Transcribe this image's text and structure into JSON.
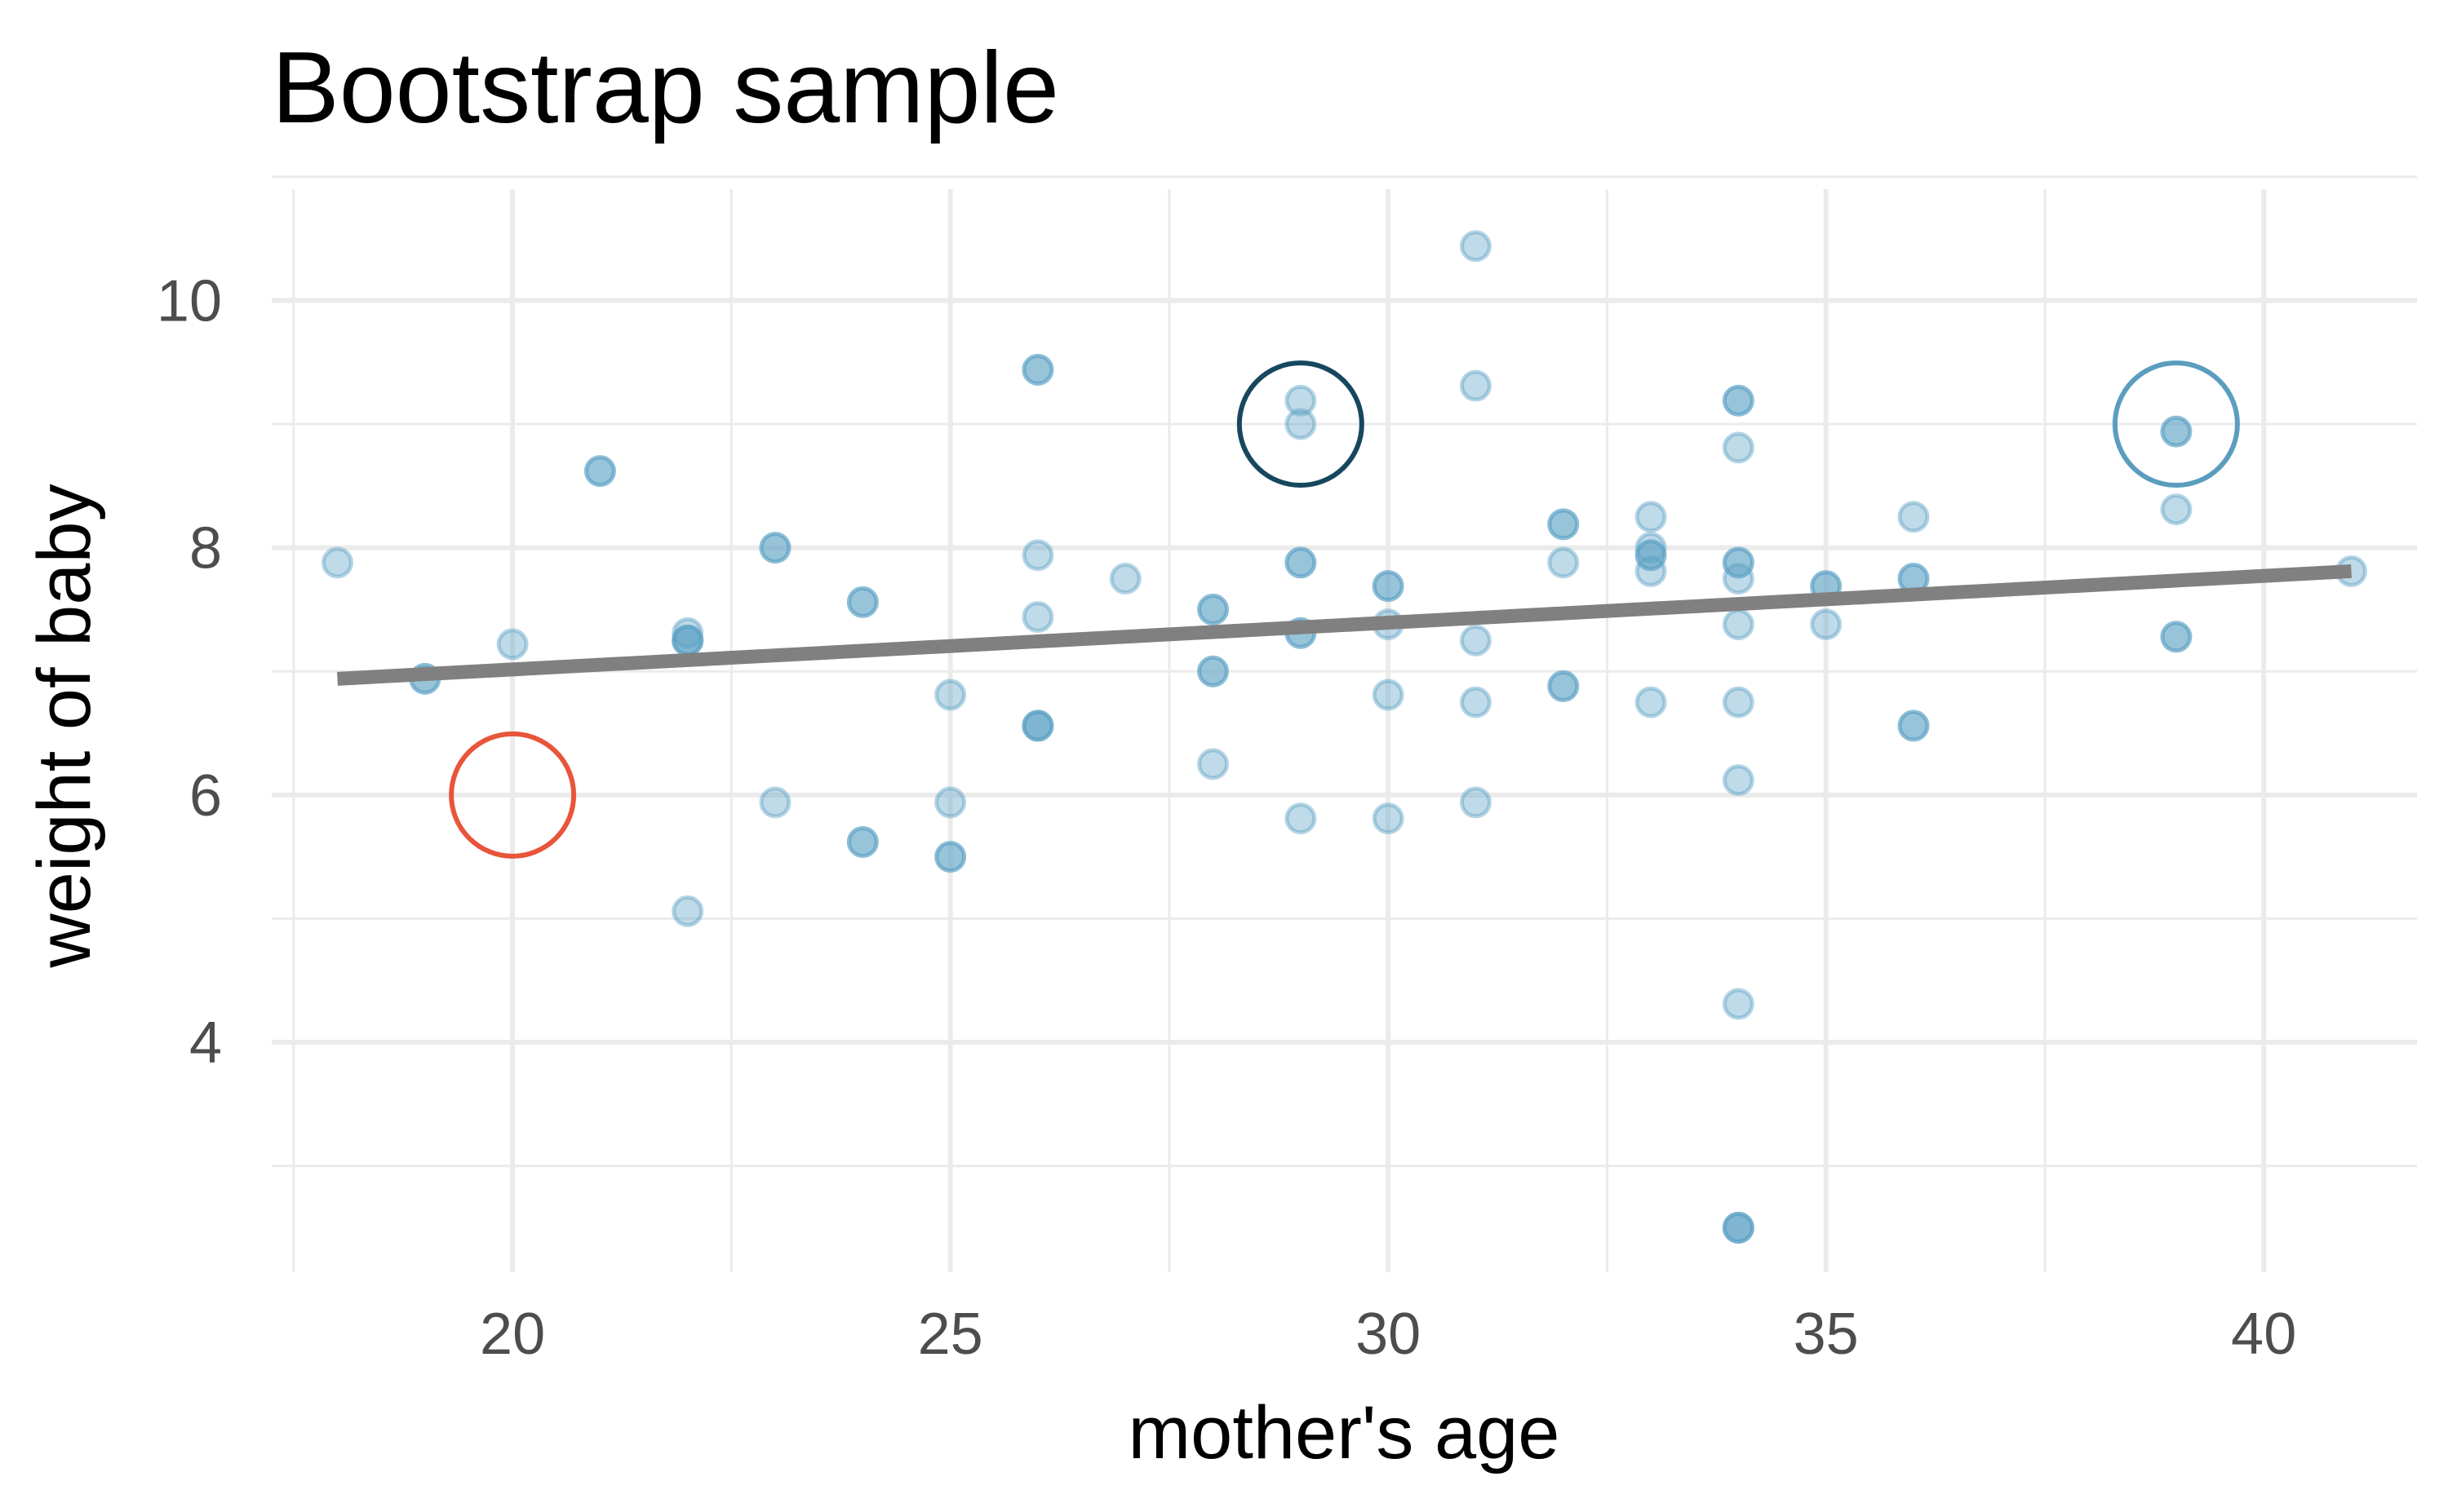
{
  "chart_data": {
    "type": "scatter",
    "title": "Bootstrap sample",
    "xlabel": "mother's age",
    "ylabel": "weight of baby",
    "xlim": [
      17.25,
      41.75
    ],
    "ylim": [
      2.14,
      10.9
    ],
    "x_ticks": [
      20,
      25,
      30,
      35,
      40
    ],
    "y_ticks": [
      4,
      6,
      8,
      10
    ],
    "x_ticks_labels": [
      "20",
      "25",
      "30",
      "35",
      "40"
    ],
    "y_ticks_labels": [
      "4",
      "6",
      "8",
      "10"
    ],
    "grid": true,
    "legend": "none",
    "colors": {
      "points": "#5ea2c5",
      "trend_line": "#808080",
      "grid": "#ebebeb",
      "circle_excluded": "#e8553a",
      "circle_repeated": "#16475e",
      "circle_tripled": "#5a9dbf"
    },
    "series": [
      {
        "type": "scatter",
        "x": [
          18,
          19,
          19,
          20,
          21,
          21,
          22,
          22,
          22,
          22,
          22,
          23,
          23,
          23,
          24,
          24,
          24,
          24,
          25,
          25,
          25,
          25,
          26,
          26,
          26,
          26,
          26,
          26,
          26,
          27,
          28,
          28,
          28,
          28,
          28,
          29,
          29,
          29,
          29,
          29,
          29,
          29,
          30,
          30,
          30,
          30,
          30,
          31,
          31,
          31,
          31,
          31,
          32,
          32,
          32,
          32,
          32,
          33,
          33,
          33,
          33,
          33,
          33,
          34,
          34,
          34,
          34,
          34,
          34,
          34,
          34,
          34,
          34,
          34,
          34,
          34,
          35,
          35,
          35,
          36,
          36,
          36,
          36,
          36,
          39,
          39,
          39,
          39,
          39,
          41
        ],
        "y": [
          7.88,
          6.94,
          6.94,
          7.22,
          8.62,
          8.62,
          7.31,
          7.25,
          7.25,
          7.25,
          5.06,
          8.0,
          8.0,
          5.94,
          7.56,
          7.56,
          5.62,
          5.62,
          6.81,
          5.5,
          5.5,
          5.94,
          9.44,
          9.44,
          7.94,
          7.44,
          6.56,
          6.56,
          6.56,
          7.75,
          7.5,
          7.5,
          7.0,
          7.0,
          6.25,
          9.19,
          9.0,
          7.88,
          7.88,
          7.31,
          7.31,
          5.81,
          7.69,
          7.69,
          7.38,
          6.81,
          5.81,
          10.44,
          9.31,
          7.25,
          6.75,
          5.94,
          8.19,
          8.19,
          7.88,
          6.88,
          6.88,
          8.25,
          8.0,
          7.94,
          7.94,
          7.81,
          6.75,
          9.19,
          9.19,
          8.81,
          7.88,
          7.88,
          7.75,
          7.38,
          6.75,
          6.12,
          4.31,
          2.5,
          2.5,
          2.5,
          7.69,
          7.69,
          7.38,
          8.25,
          7.75,
          7.75,
          6.56,
          6.56,
          8.94,
          8.94,
          8.31,
          7.28,
          7.28,
          7.81
        ]
      },
      {
        "type": "line",
        "x": [
          18,
          41
        ],
        "y": [
          6.94,
          7.81
        ]
      }
    ],
    "annotations": [
      {
        "shape": "circle",
        "x": 20,
        "y": 6.0,
        "color": "#e8553a"
      },
      {
        "shape": "circle",
        "x": 29,
        "y": 9.0,
        "color": "#16475e"
      },
      {
        "shape": "circle",
        "x": 39,
        "y": 9.0,
        "color": "#5a9dbf"
      }
    ]
  }
}
